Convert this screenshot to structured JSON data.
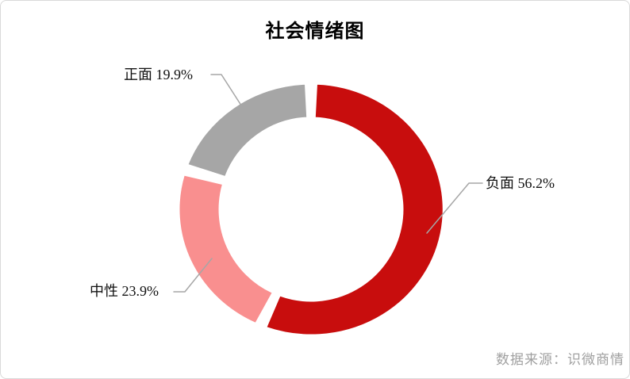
{
  "title": "社会情绪图",
  "source_credit": "数据来源：识微商情",
  "chart_data": {
    "type": "pie",
    "subtype": "donut",
    "title": "社会情绪图",
    "unit": "%",
    "start_angle_deg": 0,
    "clockwise": true,
    "inner_radius_ratio": 0.7,
    "legend_position": "none",
    "labels_style": "outside-with-leader-lines",
    "leader_line_color": "#a6a6a6",
    "segments": [
      {
        "label": "负面",
        "value": 56.2,
        "display": "负面 56.2%",
        "color": "#c80d0d"
      },
      {
        "label": "中性",
        "value": 23.9,
        "display": "中性 23.9%",
        "color": "#f98f8f"
      },
      {
        "label": "正面",
        "value": 19.9,
        "display": "正面 19.9%",
        "color": "#a6a6a6"
      }
    ],
    "source": "数据来源：识微商情"
  }
}
